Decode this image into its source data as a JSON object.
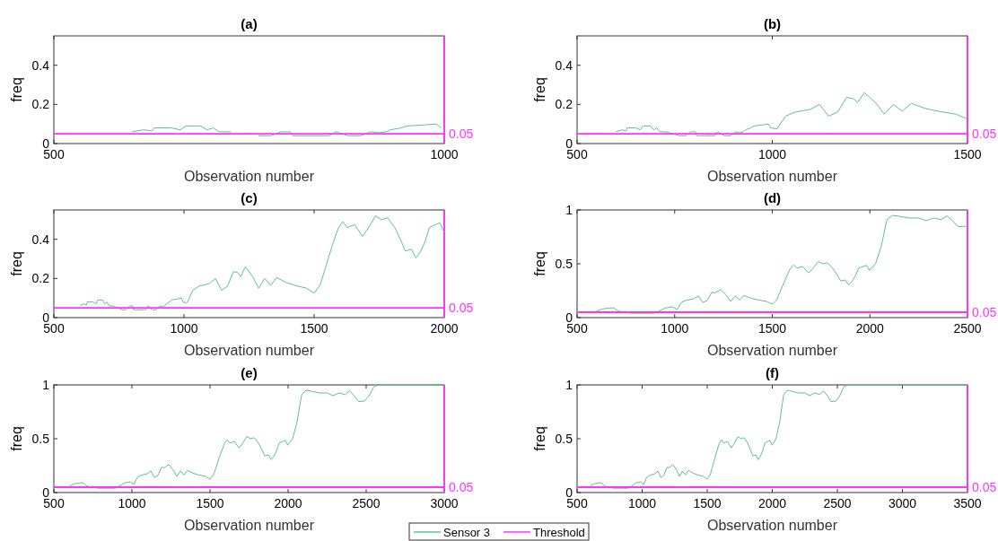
{
  "chart_data": [
    {
      "type": "line",
      "title": "(a)",
      "xlabel": "Observation number",
      "ylabel": "freq",
      "xlim": [
        500,
        1000
      ],
      "xticks": [
        500,
        1000
      ],
      "ylim": [
        0,
        0.55
      ],
      "yticks": [
        0,
        0.2,
        0.4
      ],
      "series": [
        {
          "color": "#5fbf95",
          "x": [
            600,
            614,
            626,
            628,
            650,
            662,
            669,
            688,
            696,
            704,
            712,
            727,
            745,
            762,
            778,
            791,
            803,
            806,
            814,
            825,
            853,
            861,
            877,
            893,
            906,
            916,
            926,
            931,
            945,
            953,
            974,
            990,
            996
          ],
          "values": [
            0.06,
            0.07,
            0.065,
            0.08,
            0.08,
            0.07,
            0.09,
            0.09,
            0.07,
            0.08,
            0.06,
            0.06,
            null,
            0.04,
            0.04,
            0.06,
            0.06,
            0.04,
            0.04,
            0.04,
            0.04,
            0.06,
            0.04,
            0.04,
            0.06,
            0.055,
            0.06,
            0.07,
            0.08,
            0.09,
            0.095,
            0.1,
            0.08
          ]
        },
        {
          "color": "#ff33ff",
          "x": [
            500,
            1000
          ],
          "values": [
            0.05,
            0.05
          ]
        }
      ],
      "ref_lines": [
        {
          "axis": "x",
          "value": 1000,
          "color": "#ff33ff"
        }
      ],
      "annotations": [
        {
          "text": "0.05",
          "x": 1000,
          "y": 0.05
        }
      ]
    },
    {
      "type": "line",
      "title": "(b)",
      "xlabel": "Observation number",
      "ylabel": "freq",
      "xlim": [
        500,
        1500
      ],
      "xticks": [
        500,
        1000,
        1500
      ],
      "ylim": [
        0,
        0.55
      ],
      "yticks": [
        0,
        0.2,
        0.4
      ],
      "series": [
        {
          "color": "#5fbf95",
          "x": [
            600,
            614,
            626,
            628,
            650,
            662,
            669,
            688,
            696,
            704,
            712,
            727,
            745,
            762,
            778,
            791,
            803,
            806,
            814,
            825,
            853,
            861,
            877,
            893,
            906,
            916,
            926,
            931,
            945,
            953,
            974,
            990,
            996,
            1012,
            1034,
            1057,
            1098,
            1121,
            1144,
            1167,
            1190,
            1207,
            1218,
            1236,
            1264,
            1287,
            1310,
            1333,
            1356,
            1391,
            1425,
            1471,
            1500
          ],
          "values": [
            0.06,
            0.07,
            0.065,
            0.08,
            0.08,
            0.07,
            0.09,
            0.09,
            0.07,
            0.08,
            0.06,
            0.06,
            0.05,
            0.04,
            0.04,
            0.06,
            0.06,
            0.04,
            0.04,
            0.04,
            0.04,
            0.06,
            0.04,
            0.04,
            0.06,
            0.055,
            0.06,
            0.07,
            0.08,
            0.09,
            0.095,
            0.1,
            0.08,
            0.075,
            0.14,
            0.16,
            0.175,
            0.2,
            0.14,
            0.16,
            0.235,
            0.23,
            0.21,
            0.26,
            0.21,
            0.15,
            0.2,
            0.165,
            0.205,
            0.18,
            0.165,
            0.15,
            0.125
          ]
        },
        {
          "color": "#ff33ff",
          "x": [
            500,
            1500
          ],
          "values": [
            0.05,
            0.05
          ]
        }
      ],
      "ref_lines": [
        {
          "axis": "x",
          "value": 1500,
          "color": "#ff33ff"
        }
      ],
      "annotations": [
        {
          "text": "0.05",
          "x": 1500,
          "y": 0.05
        }
      ]
    },
    {
      "type": "line",
      "title": "(c)",
      "xlabel": "Observation number",
      "ylabel": "freq",
      "xlim": [
        500,
        2000
      ],
      "xticks": [
        500,
        1000,
        1500,
        2000
      ],
      "ylim": [
        0,
        0.55
      ],
      "yticks": [
        0,
        0.2,
        0.4
      ],
      "series": [
        {
          "color": "#5fbf95",
          "x": [
            600,
            614,
            626,
            628,
            650,
            662,
            669,
            688,
            696,
            704,
            712,
            727,
            745,
            762,
            778,
            791,
            803,
            806,
            814,
            825,
            853,
            861,
            877,
            893,
            906,
            916,
            926,
            931,
            945,
            953,
            974,
            990,
            996,
            1012,
            1034,
            1057,
            1098,
            1121,
            1144,
            1167,
            1190,
            1207,
            1218,
            1236,
            1264,
            1287,
            1310,
            1333,
            1356,
            1391,
            1425,
            1471,
            1500,
            1523,
            1546,
            1569,
            1592,
            1610,
            1627,
            1656,
            1685,
            1707,
            1736,
            1759,
            1782,
            1810,
            1833,
            1851,
            1874,
            1891,
            1908,
            1925,
            1943,
            1966,
            1983,
            1998
          ],
          "values": [
            0.06,
            0.07,
            0.065,
            0.08,
            0.08,
            0.07,
            0.09,
            0.09,
            0.07,
            0.08,
            0.06,
            0.06,
            0.05,
            0.04,
            0.04,
            0.06,
            0.06,
            0.04,
            0.04,
            0.04,
            0.04,
            0.06,
            0.04,
            0.04,
            0.06,
            0.055,
            0.06,
            0.07,
            0.08,
            0.09,
            0.095,
            0.1,
            0.08,
            0.075,
            0.14,
            0.16,
            0.175,
            0.2,
            0.14,
            0.16,
            0.235,
            0.23,
            0.21,
            0.26,
            0.21,
            0.15,
            0.2,
            0.165,
            0.205,
            0.18,
            0.165,
            0.15,
            0.125,
            0.165,
            0.265,
            0.365,
            0.455,
            0.49,
            0.46,
            0.475,
            0.415,
            0.455,
            0.52,
            0.5,
            0.51,
            0.46,
            0.395,
            0.34,
            0.35,
            0.305,
            0.335,
            0.385,
            0.46,
            0.475,
            0.485,
            0.44
          ]
        },
        {
          "color": "#ff33ff",
          "x": [
            500,
            2000
          ],
          "values": [
            0.05,
            0.05
          ]
        }
      ],
      "ref_lines": [
        {
          "axis": "x",
          "value": 2000,
          "color": "#ff33ff"
        }
      ],
      "annotations": [
        {
          "text": "0.05",
          "x": 2000,
          "y": 0.05
        }
      ]
    },
    {
      "type": "line",
      "title": "(d)",
      "xlabel": "Observation number",
      "ylabel": "freq",
      "xlim": [
        500,
        2500
      ],
      "xticks": [
        500,
        1000,
        1500,
        2000,
        2500
      ],
      "ylim": [
        0,
        1
      ],
      "yticks": [
        0,
        0.5,
        1
      ],
      "series": [
        {
          "color": "#5fbf95",
          "x": [
            600,
            628,
            669,
            688,
            712,
            778,
            814,
            853,
            893,
            931,
            953,
            990,
            1012,
            1034,
            1057,
            1098,
            1121,
            1144,
            1167,
            1190,
            1207,
            1236,
            1264,
            1287,
            1310,
            1333,
            1356,
            1391,
            1425,
            1471,
            1500,
            1523,
            1546,
            1569,
            1592,
            1610,
            1627,
            1656,
            1685,
            1707,
            1736,
            1759,
            1782,
            1810,
            1833,
            1851,
            1874,
            1891,
            1908,
            1925,
            1943,
            1966,
            1983,
            1998,
            2029,
            2058,
            2087,
            2115,
            2154,
            2202,
            2250,
            2288,
            2327,
            2365,
            2394,
            2423,
            2452,
            2500
          ],
          "values": [
            0.06,
            0.08,
            0.09,
            0.09,
            0.06,
            0.04,
            0.04,
            0.04,
            0.04,
            0.07,
            0.09,
            0.1,
            0.075,
            0.14,
            0.16,
            0.175,
            0.2,
            0.14,
            0.16,
            0.235,
            0.23,
            0.26,
            0.21,
            0.15,
            0.2,
            0.165,
            0.205,
            0.18,
            0.165,
            0.15,
            0.125,
            0.165,
            0.265,
            0.365,
            0.455,
            0.49,
            0.46,
            0.475,
            0.415,
            0.455,
            0.52,
            0.5,
            0.51,
            0.46,
            0.395,
            0.34,
            0.35,
            0.305,
            0.335,
            0.385,
            0.46,
            0.475,
            0.485,
            0.44,
            0.5,
            0.66,
            0.91,
            0.95,
            0.94,
            0.925,
            0.925,
            0.9,
            0.925,
            0.91,
            0.945,
            0.9,
            0.845,
            0.85
          ]
        },
        {
          "color": "#ff33ff",
          "x": [
            500,
            2500
          ],
          "values": [
            0.05,
            0.05
          ]
        }
      ],
      "ref_lines": [
        {
          "axis": "x",
          "value": 2500,
          "color": "#ff33ff"
        }
      ],
      "annotations": [
        {
          "text": "0.05",
          "x": 2500,
          "y": 0.05
        }
      ]
    },
    {
      "type": "line",
      "title": "(e)",
      "xlabel": "Observation number",
      "ylabel": "freq",
      "xlim": [
        500,
        3000
      ],
      "xticks": [
        500,
        1000,
        1500,
        2000,
        2500,
        3000
      ],
      "ylim": [
        0,
        1
      ],
      "yticks": [
        0,
        0.5,
        1
      ],
      "series": [
        {
          "color": "#5fbf95",
          "x": [
            600,
            628,
            669,
            688,
            712,
            778,
            814,
            853,
            893,
            931,
            953,
            990,
            1012,
            1034,
            1057,
            1098,
            1121,
            1144,
            1167,
            1190,
            1207,
            1236,
            1264,
            1287,
            1310,
            1333,
            1356,
            1391,
            1425,
            1471,
            1500,
            1523,
            1546,
            1569,
            1592,
            1610,
            1627,
            1656,
            1685,
            1707,
            1736,
            1759,
            1782,
            1810,
            1833,
            1851,
            1874,
            1891,
            1908,
            1925,
            1943,
            1966,
            1983,
            1998,
            2029,
            2058,
            2087,
            2115,
            2154,
            2202,
            2250,
            2288,
            2327,
            2365,
            2394,
            2423,
            2452,
            2490,
            2519,
            2548,
            2577,
            3000
          ],
          "values": [
            0.06,
            0.08,
            0.09,
            0.09,
            0.06,
            0.04,
            0.04,
            0.04,
            0.04,
            0.07,
            0.09,
            0.1,
            0.075,
            0.14,
            0.16,
            0.175,
            0.2,
            0.14,
            0.16,
            0.235,
            0.23,
            0.26,
            0.21,
            0.15,
            0.2,
            0.165,
            0.205,
            0.18,
            0.165,
            0.15,
            0.125,
            0.165,
            0.265,
            0.365,
            0.455,
            0.49,
            0.46,
            0.475,
            0.415,
            0.455,
            0.52,
            0.5,
            0.51,
            0.46,
            0.395,
            0.34,
            0.35,
            0.305,
            0.335,
            0.385,
            0.46,
            0.475,
            0.485,
            0.44,
            0.5,
            0.66,
            0.91,
            0.95,
            0.94,
            0.925,
            0.925,
            0.9,
            0.925,
            0.91,
            0.945,
            0.9,
            0.845,
            0.85,
            0.9,
            0.98,
            1,
            1
          ]
        },
        {
          "color": "#ff33ff",
          "x": [
            500,
            3000
          ],
          "values": [
            0.05,
            0.05
          ]
        }
      ],
      "ref_lines": [
        {
          "axis": "x",
          "value": 3000,
          "color": "#ff33ff"
        }
      ],
      "annotations": [
        {
          "text": "0.05",
          "x": 3000,
          "y": 0.05
        }
      ]
    },
    {
      "type": "line",
      "title": "(f)",
      "xlabel": "Observation number",
      "ylabel": "freq",
      "xlim": [
        500,
        3500
      ],
      "xticks": [
        500,
        1000,
        1500,
        2000,
        2500,
        3000,
        3500
      ],
      "ylim": [
        0,
        1
      ],
      "yticks": [
        0,
        0.5,
        1
      ],
      "legend": "bottom",
      "series": [
        {
          "name": "Sensor 3",
          "color": "#5fbf95",
          "x": [
            600,
            628,
            669,
            688,
            712,
            778,
            814,
            853,
            893,
            931,
            953,
            990,
            1012,
            1034,
            1057,
            1098,
            1121,
            1144,
            1167,
            1190,
            1207,
            1236,
            1264,
            1287,
            1310,
            1333,
            1356,
            1391,
            1425,
            1471,
            1500,
            1523,
            1546,
            1569,
            1592,
            1610,
            1627,
            1656,
            1685,
            1707,
            1736,
            1759,
            1782,
            1810,
            1833,
            1851,
            1874,
            1891,
            1908,
            1925,
            1943,
            1966,
            1983,
            1998,
            2029,
            2058,
            2087,
            2115,
            2154,
            2202,
            2250,
            2288,
            2327,
            2365,
            2394,
            2423,
            2452,
            2490,
            2519,
            2548,
            2577,
            3500
          ],
          "values": [
            0.06,
            0.08,
            0.09,
            0.09,
            0.06,
            0.04,
            0.04,
            0.04,
            0.04,
            0.07,
            0.09,
            0.1,
            0.075,
            0.14,
            0.16,
            0.175,
            0.2,
            0.14,
            0.16,
            0.235,
            0.23,
            0.26,
            0.21,
            0.15,
            0.2,
            0.165,
            0.205,
            0.18,
            0.165,
            0.15,
            0.125,
            0.165,
            0.265,
            0.365,
            0.455,
            0.49,
            0.46,
            0.475,
            0.415,
            0.455,
            0.52,
            0.5,
            0.51,
            0.46,
            0.395,
            0.34,
            0.35,
            0.305,
            0.335,
            0.385,
            0.46,
            0.475,
            0.485,
            0.44,
            0.5,
            0.66,
            0.91,
            0.95,
            0.94,
            0.925,
            0.925,
            0.9,
            0.925,
            0.91,
            0.945,
            0.9,
            0.845,
            0.85,
            0.9,
            0.98,
            1,
            1
          ]
        },
        {
          "name": "Threshold",
          "color": "#ff33ff",
          "x": [
            500,
            3500
          ],
          "values": [
            0.05,
            0.05
          ]
        }
      ],
      "ref_lines": [
        {
          "axis": "x",
          "value": 3500,
          "color": "#ff33ff"
        }
      ],
      "annotations": [
        {
          "text": "0.05",
          "x": 3500,
          "y": 0.05
        }
      ]
    }
  ]
}
